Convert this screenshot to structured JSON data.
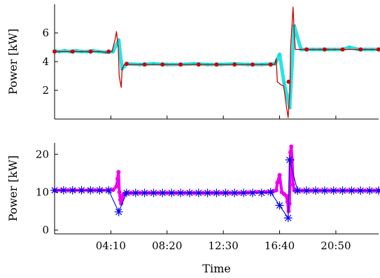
{
  "chart_data": [
    {
      "type": "line",
      "ylabel": "Power [kW]",
      "xlabel": "",
      "ylim": [
        0,
        8
      ],
      "xlim": [
        0,
        1440
      ],
      "yticks": [
        2,
        4,
        6
      ],
      "xticks": [
        250,
        500,
        750,
        1000,
        1250
      ],
      "xticklabels": [],
      "grid": false,
      "series": [
        {
          "color": "#00e0e0",
          "style": "scatter",
          "x": [
            0,
            20,
            45,
            70,
            95,
            120,
            145,
            170,
            195,
            230,
            260,
            285,
            300,
            320,
            380,
            440,
            500,
            560,
            620,
            680,
            740,
            800,
            860,
            920,
            980,
            1000,
            1020,
            1045,
            1065,
            1095,
            1120,
            1150,
            1180,
            1215,
            1245,
            1280,
            1310,
            1350,
            1380,
            1410,
            1440
          ],
          "y": [
            4.75,
            4.7,
            4.75,
            4.7,
            4.75,
            4.7,
            4.7,
            4.75,
            4.7,
            4.65,
            4.7,
            5.5,
            3.5,
            3.85,
            3.8,
            3.85,
            3.8,
            3.8,
            3.85,
            3.8,
            3.8,
            3.85,
            3.8,
            3.8,
            3.85,
            4.5,
            2.5,
            0.8,
            6.5,
            4.85,
            4.85,
            4.85,
            4.85,
            4.85,
            4.85,
            4.85,
            5.0,
            4.85,
            4.85,
            4.85,
            4.85
          ]
        },
        {
          "color": "#cc0000",
          "style": "line-markers",
          "x": [
            0,
            25,
            50,
            75,
            100,
            125,
            150,
            175,
            200,
            225,
            255,
            270,
            275,
            283,
            287,
            296,
            300,
            310,
            320,
            330,
            340,
            380,
            420,
            460,
            500,
            540,
            580,
            620,
            660,
            700,
            740,
            780,
            820,
            860,
            900,
            940,
            978,
            985,
            990,
            1005,
            1018,
            1025,
            1031,
            1038,
            1046,
            1049,
            1055,
            1060,
            1065,
            1070,
            1078,
            1085,
            1120,
            1160,
            1200,
            1240,
            1280,
            1320,
            1360,
            1400,
            1440
          ],
          "y": [
            4.7,
            4.7,
            4.7,
            4.7,
            4.7,
            4.7,
            4.7,
            4.7,
            4.7,
            4.65,
            4.7,
            5.6,
            6.1,
            5.0,
            3.0,
            2.2,
            3.5,
            3.8,
            3.85,
            3.8,
            3.8,
            3.8,
            3.8,
            3.8,
            3.8,
            3.8,
            3.8,
            3.8,
            3.8,
            3.8,
            3.8,
            3.8,
            3.8,
            3.8,
            3.8,
            3.8,
            3.8,
            4.2,
            2.6,
            2.4,
            2.3,
            1.5,
            0.8,
            0.1,
            2.0,
            5.0,
            6.5,
            7.8,
            6.0,
            4.85,
            4.85,
            4.85,
            4.85,
            4.85,
            4.85,
            4.85,
            4.85,
            4.85,
            4.85,
            4.85,
            4.85
          ],
          "markers_x": [
            0,
            80,
            160,
            240,
            320,
            400,
            480,
            560,
            640,
            720,
            800,
            880,
            960,
            1040,
            1120,
            1200,
            1280,
            1360,
            1440
          ],
          "markers_y": [
            4.7,
            4.7,
            4.7,
            4.7,
            3.85,
            3.8,
            3.8,
            3.8,
            3.8,
            3.8,
            3.8,
            3.8,
            3.8,
            2.6,
            4.85,
            4.85,
            4.85,
            4.85,
            4.85
          ]
        }
      ]
    },
    {
      "type": "line",
      "ylabel": "Power [kW]",
      "xlabel": "Time",
      "ylim": [
        -1,
        23
      ],
      "xlim": [
        0,
        1440
      ],
      "yticks": [
        0,
        10,
        20
      ],
      "xticks": [
        250,
        500,
        750,
        1000,
        1250
      ],
      "xticklabels": [
        "04:10",
        "08:20",
        "12:30",
        "16:40",
        "20:50"
      ],
      "grid": false,
      "series": [
        {
          "color": "#ee00ee",
          "style": "line-markers",
          "x": [
            0,
            30,
            60,
            90,
            120,
            150,
            180,
            210,
            240,
            260,
            275,
            280,
            284,
            288,
            292,
            296,
            300,
            305,
            310,
            320,
            340,
            380,
            420,
            460,
            500,
            540,
            580,
            620,
            660,
            700,
            740,
            780,
            820,
            860,
            900,
            940,
            970,
            985,
            990,
            1000,
            1010,
            1020,
            1030,
            1035,
            1040,
            1044,
            1048,
            1052,
            1056,
            1060,
            1065,
            1070,
            1080,
            1100,
            1140,
            1180,
            1220,
            1260,
            1300,
            1340,
            1380,
            1420,
            1440
          ],
          "y": [
            10.5,
            10.5,
            10.5,
            10.5,
            10.5,
            10.5,
            10.5,
            10.5,
            10.5,
            10.6,
            11.5,
            13.5,
            15.3,
            10.0,
            8.0,
            7.0,
            8.5,
            9.3,
            9.6,
            9.8,
            9.8,
            9.8,
            9.8,
            9.8,
            9.8,
            9.8,
            9.8,
            9.8,
            9.8,
            9.8,
            9.8,
            9.8,
            9.8,
            9.9,
            10.0,
            10.0,
            10.2,
            10.5,
            12.5,
            14.5,
            10.0,
            9.5,
            9.0,
            7.5,
            5.0,
            7.0,
            20.5,
            22.0,
            18.5,
            12.0,
            10.5,
            10.4,
            10.4,
            10.4,
            10.4,
            10.4,
            10.4,
            10.4,
            10.4,
            10.4,
            10.4,
            10.4,
            10.4
          ]
        },
        {
          "color": "#0000ee",
          "style": "star-line",
          "x": [
            0,
            40,
            80,
            120,
            160,
            200,
            240,
            285,
            320,
            360,
            400,
            440,
            480,
            520,
            560,
            600,
            640,
            680,
            720,
            760,
            800,
            840,
            880,
            920,
            960,
            1000,
            1038,
            1044,
            1080,
            1120,
            1160,
            1200,
            1240,
            1280,
            1320,
            1360,
            1400,
            1440
          ],
          "y": [
            10.5,
            10.5,
            10.5,
            10.5,
            10.5,
            10.5,
            10.5,
            4.8,
            9.8,
            9.8,
            9.8,
            9.8,
            9.8,
            9.8,
            9.8,
            9.8,
            9.8,
            9.8,
            9.8,
            9.8,
            9.8,
            9.8,
            9.8,
            9.8,
            10.0,
            6.5,
            3.2,
            18.5,
            10.4,
            10.4,
            10.4,
            10.4,
            10.4,
            10.4,
            10.4,
            10.4,
            10.4,
            10.4
          ]
        }
      ]
    }
  ]
}
